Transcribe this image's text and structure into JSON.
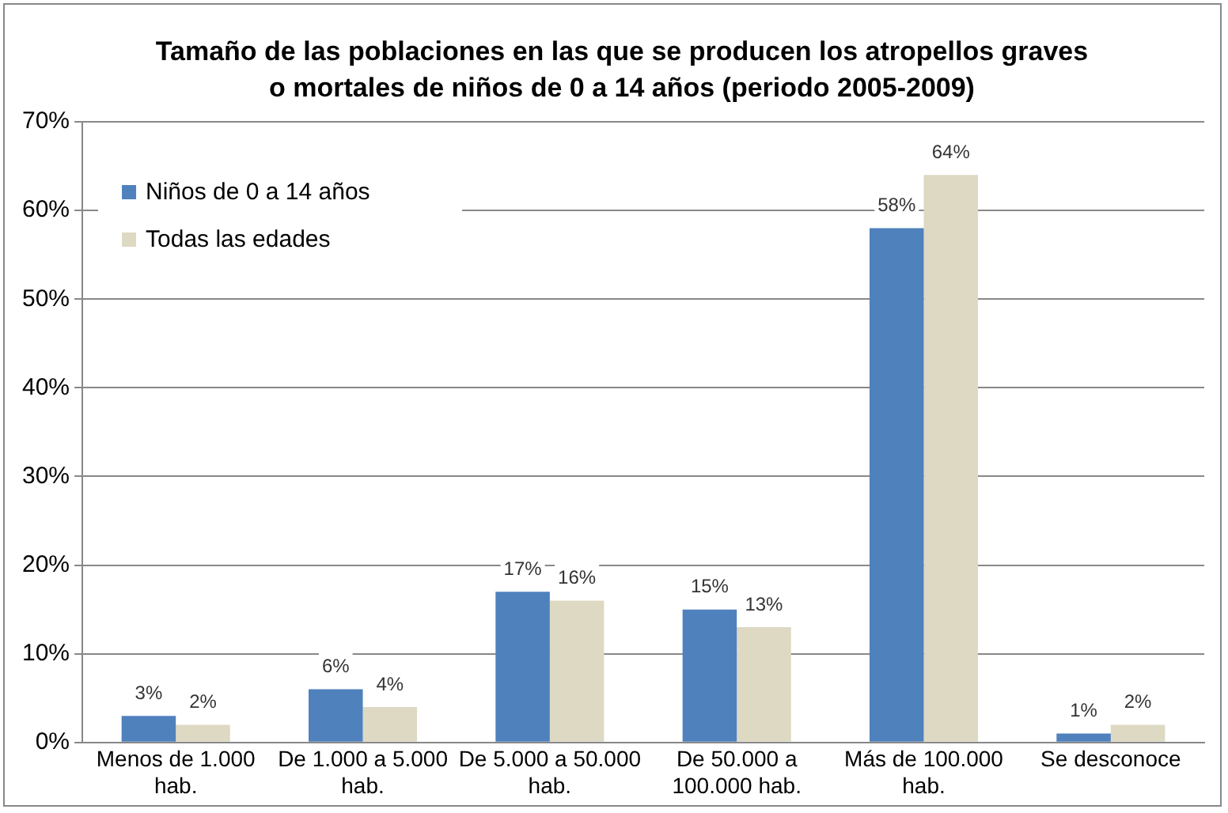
{
  "chart_data": {
    "type": "bar",
    "title": "Tamaño de las poblaciones en las que se producen los atropellos graves o mortales de niños de 0 a 14 años (periodo 2005-2009)",
    "categories": [
      "Menos de 1.000 hab.",
      "De 1.000 a 5.000 hab.",
      "De 5.000 a 50.000 hab.",
      "De 50.000 a 100.000 hab.",
      "Más de 100.000 hab.",
      "Se desconoce"
    ],
    "series": [
      {
        "name": "Niños de 0 a 14 años",
        "color": "#4f81bd",
        "values": [
          3,
          6,
          17,
          15,
          58,
          1
        ],
        "value_labels": [
          "3%",
          "6%",
          "17%",
          "15%",
          "58%",
          "1%"
        ]
      },
      {
        "name": "Todas las edades",
        "color": "#ddd9c3",
        "values": [
          2,
          4,
          16,
          13,
          64,
          2
        ],
        "value_labels": [
          "2%",
          "4%",
          "16%",
          "13%",
          "64%",
          "2%"
        ]
      }
    ],
    "ylim": [
      0,
      70
    ],
    "yticks": [
      {
        "value": 0,
        "label": "0%"
      },
      {
        "value": 10,
        "label": "10%"
      },
      {
        "value": 20,
        "label": "20%"
      },
      {
        "value": 30,
        "label": "30%"
      },
      {
        "value": 40,
        "label": "40%"
      },
      {
        "value": 50,
        "label": "50%"
      },
      {
        "value": 60,
        "label": "60%"
      },
      {
        "value": 70,
        "label": "70%"
      }
    ],
    "grid": "y",
    "legend": "top left"
  }
}
